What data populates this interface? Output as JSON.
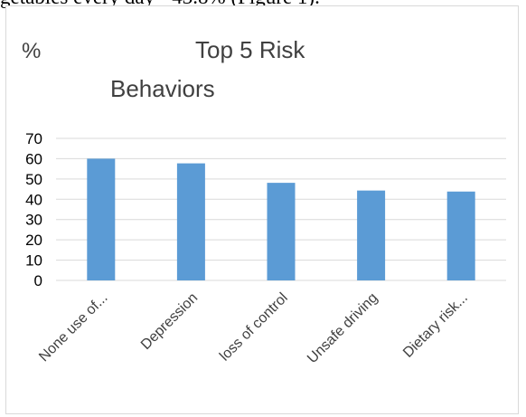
{
  "document": {
    "text_fragment": "getables every day - 43.8% (Figure 1)."
  },
  "chart_data": {
    "type": "bar",
    "title": "Top 5 Risk Behaviors",
    "title_lines": [
      "Top 5 Risk",
      "Behaviors"
    ],
    "ylabel": "%",
    "xlabel": "",
    "categories": [
      "None use of...",
      "Depression",
      "loss of control",
      "Unsafe driving",
      "Dietary risk..."
    ],
    "values": [
      60,
      57.7,
      48.1,
      44.3,
      43.8
    ],
    "ylim": [
      0,
      70
    ],
    "yticks": [
      0,
      10,
      20,
      30,
      40,
      50,
      60,
      70
    ],
    "grid": true,
    "legend": "none",
    "bar_color": "#5b9bd5",
    "grid_color": "#d9d9d9"
  }
}
